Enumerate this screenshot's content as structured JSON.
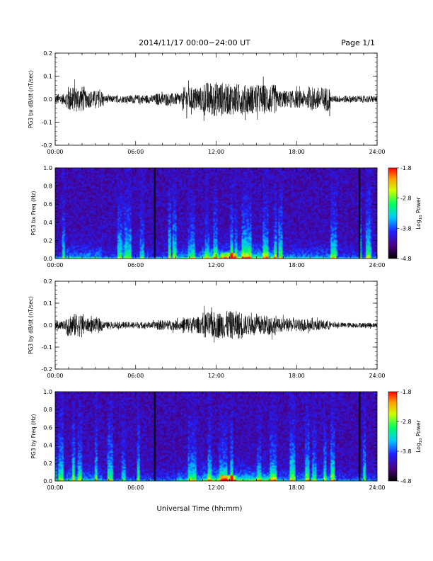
{
  "header": {
    "title": "2014/11/17  00:00−24:00 UT",
    "page": "Page 1/1"
  },
  "xlabel": "Universal Time (hh:mm)",
  "colors": {
    "waveform": "#000000",
    "spectrogram_background": "#3a1a78",
    "colormap": [
      "#000000",
      "#4b0082",
      "#2020ff",
      "#00c8ff",
      "#00ff60",
      "#d0ff00",
      "#ffa000",
      "#ff0000"
    ]
  },
  "chart_data": [
    {
      "type": "line",
      "ylabel": "PG3 bx dB/dt (nT/sec)",
      "xlim": [
        0,
        24
      ],
      "ylim": [
        -0.2,
        0.2
      ],
      "x_ticks": [
        "00:00",
        "06:00",
        "12:00",
        "18:00",
        "24:00"
      ],
      "y_ticks": [
        "-0.2",
        "-0.1",
        "0.0",
        "0.1",
        "0.2"
      ],
      "activity_envelope": [
        {
          "start": 0.0,
          "end": 0.8,
          "amp": 0.03
        },
        {
          "start": 0.8,
          "end": 2.2,
          "amp": 0.075
        },
        {
          "start": 2.2,
          "end": 3.6,
          "amp": 0.05
        },
        {
          "start": 3.6,
          "end": 5.5,
          "amp": 0.02
        },
        {
          "start": 5.5,
          "end": 7.5,
          "amp": 0.025
        },
        {
          "start": 7.5,
          "end": 9.5,
          "amp": 0.035
        },
        {
          "start": 9.5,
          "end": 11.0,
          "amp": 0.07
        },
        {
          "start": 11.0,
          "end": 12.5,
          "amp": 0.1
        },
        {
          "start": 12.5,
          "end": 14.0,
          "amp": 0.09
        },
        {
          "start": 14.0,
          "end": 16.5,
          "amp": 0.085
        },
        {
          "start": 16.5,
          "end": 19.0,
          "amp": 0.05
        },
        {
          "start": 19.0,
          "end": 20.5,
          "amp": 0.07
        },
        {
          "start": 20.5,
          "end": 24.0,
          "amp": 0.02
        }
      ]
    },
    {
      "type": "heatmap",
      "ylabel": "PG3 bx Freq (Hz)",
      "xlim": [
        0,
        24
      ],
      "ylim": [
        0,
        1.0
      ],
      "x_ticks": [
        "00:00",
        "06:00",
        "12:00",
        "18:00",
        "24:00"
      ],
      "y_ticks": [
        "0.0",
        "0.2",
        "0.4",
        "0.6",
        "0.8",
        "1.0"
      ],
      "colorbar": {
        "label": "Log10 Power",
        "min": -4.8,
        "max": -1.8,
        "ticks": [
          "-1.8",
          "-2.8",
          "-3.8",
          "-4.8"
        ]
      },
      "data_gaps_hours": [
        7.4,
        22.7
      ],
      "hot_interval_hours": [
        11.0,
        16.5
      ]
    },
    {
      "type": "line",
      "ylabel": "PG3 by dB/dt (nT/sec)",
      "xlim": [
        0,
        24
      ],
      "ylim": [
        -0.2,
        0.2
      ],
      "x_ticks": [
        "00:00",
        "06:00",
        "12:00",
        "18:00",
        "24:00"
      ],
      "y_ticks": [
        "-0.2",
        "-0.1",
        "0.0",
        "0.1",
        "0.2"
      ],
      "activity_envelope": [
        {
          "start": 0.0,
          "end": 0.8,
          "amp": 0.025
        },
        {
          "start": 0.8,
          "end": 2.2,
          "amp": 0.07
        },
        {
          "start": 2.2,
          "end": 3.6,
          "amp": 0.04
        },
        {
          "start": 3.6,
          "end": 5.5,
          "amp": 0.02
        },
        {
          "start": 5.5,
          "end": 7.5,
          "amp": 0.02
        },
        {
          "start": 7.5,
          "end": 9.5,
          "amp": 0.03
        },
        {
          "start": 9.5,
          "end": 11.0,
          "amp": 0.05
        },
        {
          "start": 11.0,
          "end": 12.5,
          "amp": 0.08
        },
        {
          "start": 12.5,
          "end": 14.0,
          "amp": 0.085
        },
        {
          "start": 14.0,
          "end": 16.5,
          "amp": 0.06
        },
        {
          "start": 16.5,
          "end": 19.0,
          "amp": 0.04
        },
        {
          "start": 19.0,
          "end": 20.5,
          "amp": 0.03
        },
        {
          "start": 20.5,
          "end": 24.0,
          "amp": 0.015
        }
      ]
    },
    {
      "type": "heatmap",
      "ylabel": "PG3 by Freq (Hz)",
      "xlim": [
        0,
        24
      ],
      "ylim": [
        0,
        1.0
      ],
      "x_ticks": [
        "00:00",
        "06:00",
        "12:00",
        "18:00",
        "24:00"
      ],
      "y_ticks": [
        "0.0",
        "0.2",
        "0.4",
        "0.6",
        "0.8",
        "1.0"
      ],
      "colorbar": {
        "label": "Log10 Power",
        "min": -4.8,
        "max": -1.8,
        "ticks": [
          "-1.8",
          "-2.8",
          "-3.8",
          "-4.8"
        ]
      },
      "data_gaps_hours": [
        7.4,
        22.7
      ],
      "hot_interval_hours": [
        11.0,
        16.5
      ]
    }
  ]
}
